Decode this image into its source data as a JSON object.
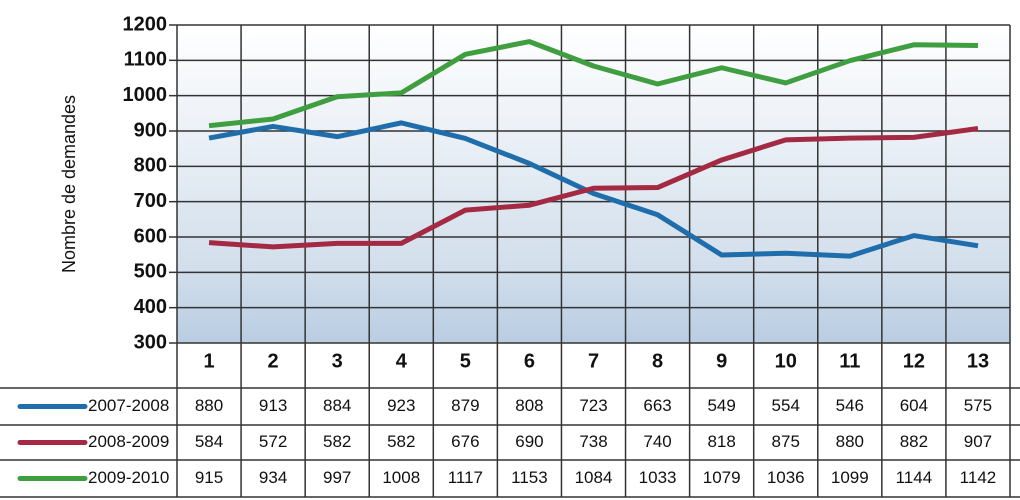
{
  "chart_data": {
    "type": "line",
    "y_label": "Nombre de demandes",
    "categories": [
      "1",
      "2",
      "3",
      "4",
      "5",
      "6",
      "7",
      "8",
      "9",
      "10",
      "11",
      "12",
      "13"
    ],
    "series": [
      {
        "name": "2007-2008",
        "color": "#1f6eab",
        "values": [
          880,
          913,
          884,
          923,
          879,
          808,
          723,
          663,
          549,
          554,
          546,
          604,
          575
        ]
      },
      {
        "name": "2008-2009",
        "color": "#a42a44",
        "values": [
          584,
          572,
          582,
          582,
          676,
          690,
          738,
          740,
          818,
          875,
          880,
          882,
          907
        ]
      },
      {
        "name": "2009-2010",
        "color": "#3f9e3f",
        "values": [
          915,
          934,
          997,
          1008,
          1117,
          1153,
          1084,
          1033,
          1079,
          1036,
          1099,
          1144,
          1142
        ]
      }
    ],
    "ylim": [
      300,
      1200
    ],
    "yticks": [
      300,
      400,
      500,
      600,
      700,
      800,
      900,
      1000,
      1100,
      1200
    ],
    "grid": true
  }
}
